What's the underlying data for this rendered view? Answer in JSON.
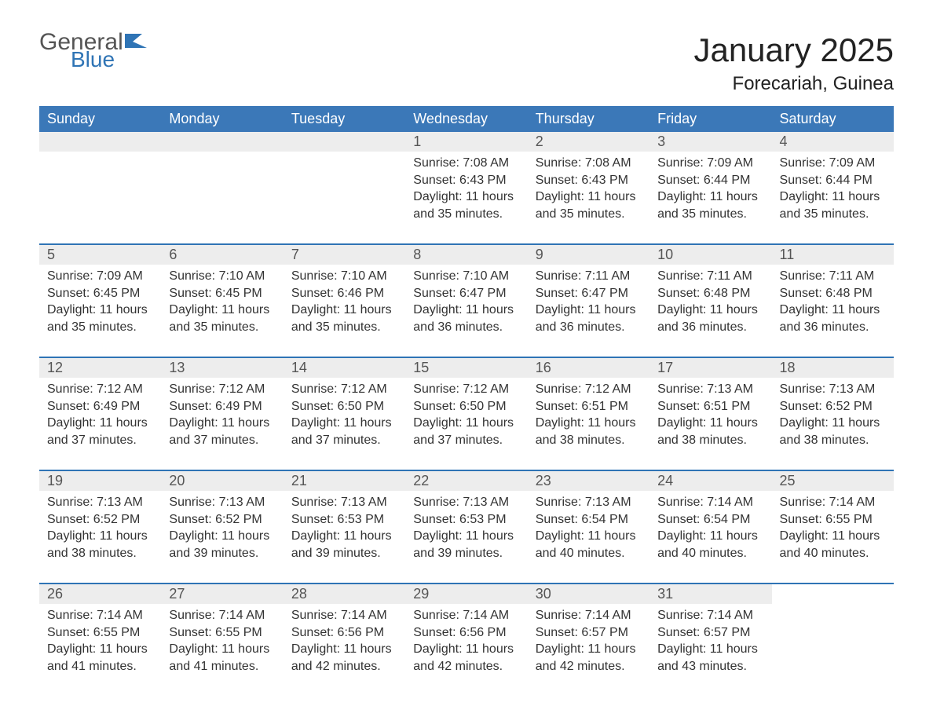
{
  "logo": {
    "main": "General",
    "sub": "Blue",
    "accent_color": "#2f74b5",
    "text_color": "#555555"
  },
  "title": "January 2025",
  "location": "Forecariah, Guinea",
  "colors": {
    "header_bg": "#3b78b8",
    "header_text": "#ffffff",
    "daynum_bg": "#ededed",
    "row_border": "#2f74b5",
    "body_text": "#333333",
    "background": "#ffffff"
  },
  "weekdays": [
    "Sunday",
    "Monday",
    "Tuesday",
    "Wednesday",
    "Thursday",
    "Friday",
    "Saturday"
  ],
  "weeks": [
    [
      null,
      null,
      null,
      {
        "n": "1",
        "sunrise": "7:08 AM",
        "sunset": "6:43 PM",
        "daylight": "11 hours and 35 minutes."
      },
      {
        "n": "2",
        "sunrise": "7:08 AM",
        "sunset": "6:43 PM",
        "daylight": "11 hours and 35 minutes."
      },
      {
        "n": "3",
        "sunrise": "7:09 AM",
        "sunset": "6:44 PM",
        "daylight": "11 hours and 35 minutes."
      },
      {
        "n": "4",
        "sunrise": "7:09 AM",
        "sunset": "6:44 PM",
        "daylight": "11 hours and 35 minutes."
      }
    ],
    [
      {
        "n": "5",
        "sunrise": "7:09 AM",
        "sunset": "6:45 PM",
        "daylight": "11 hours and 35 minutes."
      },
      {
        "n": "6",
        "sunrise": "7:10 AM",
        "sunset": "6:45 PM",
        "daylight": "11 hours and 35 minutes."
      },
      {
        "n": "7",
        "sunrise": "7:10 AM",
        "sunset": "6:46 PM",
        "daylight": "11 hours and 35 minutes."
      },
      {
        "n": "8",
        "sunrise": "7:10 AM",
        "sunset": "6:47 PM",
        "daylight": "11 hours and 36 minutes."
      },
      {
        "n": "9",
        "sunrise": "7:11 AM",
        "sunset": "6:47 PM",
        "daylight": "11 hours and 36 minutes."
      },
      {
        "n": "10",
        "sunrise": "7:11 AM",
        "sunset": "6:48 PM",
        "daylight": "11 hours and 36 minutes."
      },
      {
        "n": "11",
        "sunrise": "7:11 AM",
        "sunset": "6:48 PM",
        "daylight": "11 hours and 36 minutes."
      }
    ],
    [
      {
        "n": "12",
        "sunrise": "7:12 AM",
        "sunset": "6:49 PM",
        "daylight": "11 hours and 37 minutes."
      },
      {
        "n": "13",
        "sunrise": "7:12 AM",
        "sunset": "6:49 PM",
        "daylight": "11 hours and 37 minutes."
      },
      {
        "n": "14",
        "sunrise": "7:12 AM",
        "sunset": "6:50 PM",
        "daylight": "11 hours and 37 minutes."
      },
      {
        "n": "15",
        "sunrise": "7:12 AM",
        "sunset": "6:50 PM",
        "daylight": "11 hours and 37 minutes."
      },
      {
        "n": "16",
        "sunrise": "7:12 AM",
        "sunset": "6:51 PM",
        "daylight": "11 hours and 38 minutes."
      },
      {
        "n": "17",
        "sunrise": "7:13 AM",
        "sunset": "6:51 PM",
        "daylight": "11 hours and 38 minutes."
      },
      {
        "n": "18",
        "sunrise": "7:13 AM",
        "sunset": "6:52 PM",
        "daylight": "11 hours and 38 minutes."
      }
    ],
    [
      {
        "n": "19",
        "sunrise": "7:13 AM",
        "sunset": "6:52 PM",
        "daylight": "11 hours and 38 minutes."
      },
      {
        "n": "20",
        "sunrise": "7:13 AM",
        "sunset": "6:52 PM",
        "daylight": "11 hours and 39 minutes."
      },
      {
        "n": "21",
        "sunrise": "7:13 AM",
        "sunset": "6:53 PM",
        "daylight": "11 hours and 39 minutes."
      },
      {
        "n": "22",
        "sunrise": "7:13 AM",
        "sunset": "6:53 PM",
        "daylight": "11 hours and 39 minutes."
      },
      {
        "n": "23",
        "sunrise": "7:13 AM",
        "sunset": "6:54 PM",
        "daylight": "11 hours and 40 minutes."
      },
      {
        "n": "24",
        "sunrise": "7:14 AM",
        "sunset": "6:54 PM",
        "daylight": "11 hours and 40 minutes."
      },
      {
        "n": "25",
        "sunrise": "7:14 AM",
        "sunset": "6:55 PM",
        "daylight": "11 hours and 40 minutes."
      }
    ],
    [
      {
        "n": "26",
        "sunrise": "7:14 AM",
        "sunset": "6:55 PM",
        "daylight": "11 hours and 41 minutes."
      },
      {
        "n": "27",
        "sunrise": "7:14 AM",
        "sunset": "6:55 PM",
        "daylight": "11 hours and 41 minutes."
      },
      {
        "n": "28",
        "sunrise": "7:14 AM",
        "sunset": "6:56 PM",
        "daylight": "11 hours and 42 minutes."
      },
      {
        "n": "29",
        "sunrise": "7:14 AM",
        "sunset": "6:56 PM",
        "daylight": "11 hours and 42 minutes."
      },
      {
        "n": "30",
        "sunrise": "7:14 AM",
        "sunset": "6:57 PM",
        "daylight": "11 hours and 42 minutes."
      },
      {
        "n": "31",
        "sunrise": "7:14 AM",
        "sunset": "6:57 PM",
        "daylight": "11 hours and 43 minutes."
      },
      null
    ]
  ],
  "labels": {
    "sunrise": "Sunrise: ",
    "sunset": "Sunset: ",
    "daylight": "Daylight: "
  }
}
